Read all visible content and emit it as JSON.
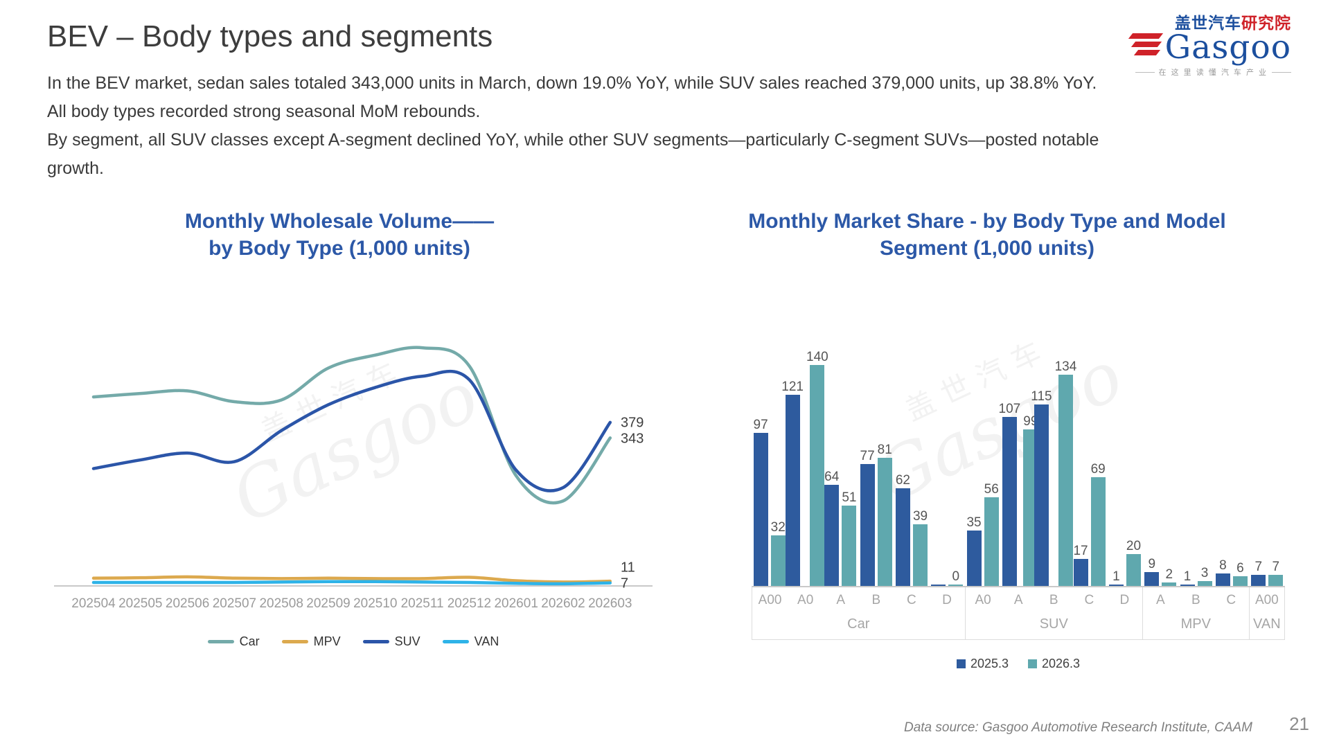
{
  "slide": {
    "title": "BEV – Body types and segments",
    "body_lines": [
      "In the BEV market, sedan sales totaled 343,000 units in March, down 19.0% YoY, while SUV sales reached 379,000 units, up 38.8% YoY.",
      "All body types recorded strong seasonal MoM rebounds.",
      "By segment, all SUV classes except A-segment declined YoY, while other SUV segments—particularly C-segment SUVs—posted notable",
      "growth."
    ],
    "footer": "Data source: Gasgoo Automotive Research Institute, CAAM",
    "page_number": "21"
  },
  "logo": {
    "cn_main": "盖世汽车",
    "cn_suffix": "研究院",
    "wordmark": "Gasgoo",
    "tagline": "在 这 里 读 懂 汽 车 产 业"
  },
  "watermark": {
    "cn": "盖世汽车",
    "en": "Gasgoo"
  },
  "line_chart": {
    "title_lines": [
      "Monthly Wholesale Volume——",
      "by Body Type (1,000 units)"
    ]
  },
  "bar_chart": {
    "title_lines": [
      "Monthly Market Share - by Body Type and Model",
      "Segment (1,000 units)"
    ]
  },
  "chart_data": [
    {
      "type": "line",
      "title": "Monthly Wholesale Volume—— by Body Type (1,000 units)",
      "x": [
        "202504",
        "202505",
        "202506",
        "202507",
        "202508",
        "202509",
        "202510",
        "202511",
        "202512",
        "202601",
        "202602",
        "202603"
      ],
      "series": [
        {
          "name": "Car",
          "color": "#74aaa9",
          "values": [
            438,
            446,
            452,
            427,
            431,
            505,
            535,
            552,
            510,
            255,
            197,
            343
          ],
          "end_label": "343"
        },
        {
          "name": "MPV",
          "color": "#dca94e",
          "values": [
            18,
            19,
            21,
            18,
            17,
            18,
            17,
            17,
            20,
            12,
            9,
            11
          ],
          "end_label": "11"
        },
        {
          "name": "SUV",
          "color": "#2b55a8",
          "values": [
            272,
            292,
            308,
            288,
            360,
            420,
            460,
            486,
            478,
            268,
            228,
            379
          ],
          "end_label": "379"
        },
        {
          "name": "VAN",
          "color": "#2eb3e8",
          "values": [
            8,
            8,
            8,
            8,
            9,
            10,
            10,
            9,
            8,
            6,
            5,
            7
          ],
          "end_label": "7"
        }
      ],
      "ylim": [
        0,
        580
      ],
      "grid": false,
      "legend_position": "bottom"
    },
    {
      "type": "bar",
      "title": "Monthly Market Share - by Body Type and Model Segment (1,000 units)",
      "series_names": [
        "2025.3",
        "2026.3"
      ],
      "colors": [
        "#2e5b9e",
        "#5fa8ae"
      ],
      "ylim": [
        0,
        150
      ],
      "legend_position": "bottom",
      "groups": [
        {
          "name": "Car",
          "segments": [
            {
              "label": "A00",
              "values": [
                97,
                32
              ]
            },
            {
              "label": "A0",
              "values": [
                121,
                140
              ]
            },
            {
              "label": "A",
              "values": [
                64,
                51
              ]
            },
            {
              "label": "B",
              "values": [
                77,
                81
              ]
            },
            {
              "label": "C",
              "values": [
                62,
                39
              ]
            },
            {
              "label": "D",
              "values": [
                0,
                0
              ],
              "labels": [
                "",
                "0"
              ]
            }
          ]
        },
        {
          "name": "SUV",
          "segments": [
            {
              "label": "A0",
              "values": [
                35,
                56
              ]
            },
            {
              "label": "A",
              "values": [
                107,
                99
              ]
            },
            {
              "label": "B",
              "values": [
                115,
                134
              ]
            },
            {
              "label": "C",
              "values": [
                17,
                69
              ]
            },
            {
              "label": "D",
              "values": [
                1,
                20
              ]
            }
          ]
        },
        {
          "name": "MPV",
          "segments": [
            {
              "label": "A",
              "values": [
                9,
                2
              ]
            },
            {
              "label": "B",
              "values": [
                1,
                3
              ]
            },
            {
              "label": "C",
              "values": [
                8,
                6
              ]
            }
          ]
        },
        {
          "name": "VAN",
          "segments": [
            {
              "label": "A00",
              "values": [
                7,
                7
              ]
            }
          ]
        }
      ]
    }
  ]
}
